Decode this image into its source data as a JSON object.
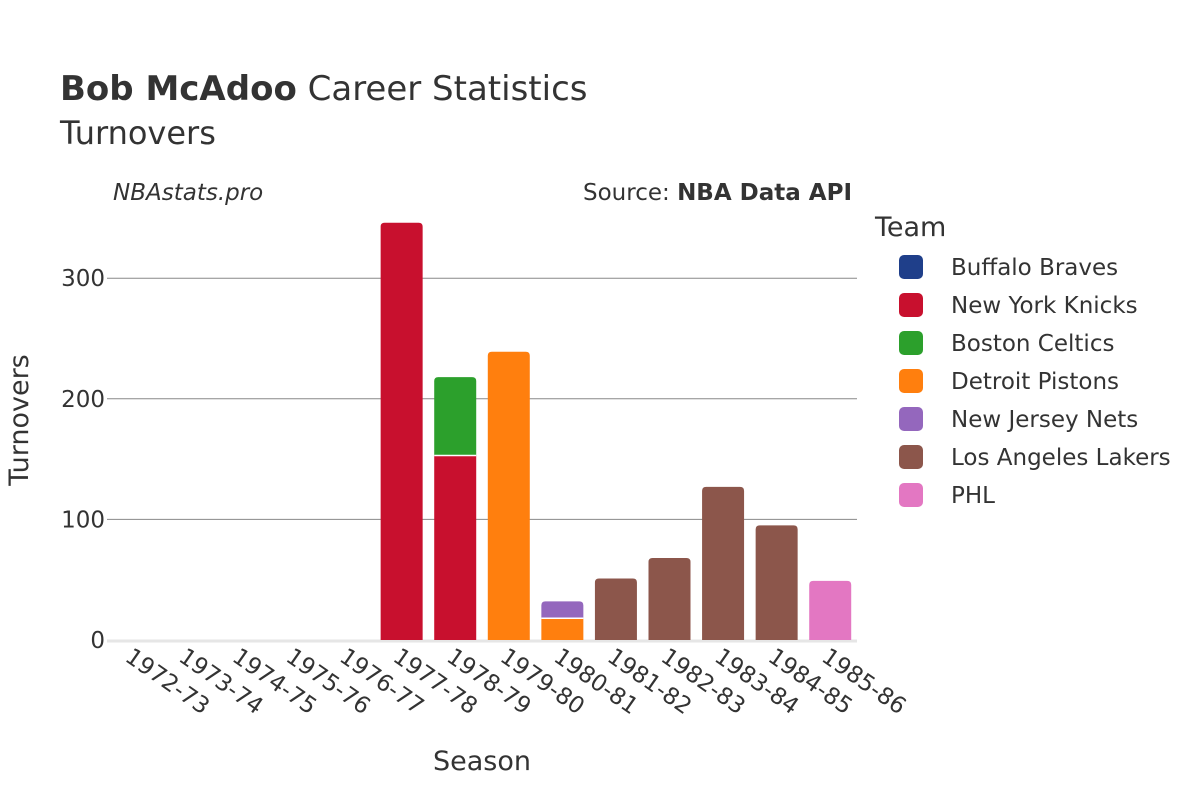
{
  "chart_data": {
    "type": "bar",
    "stacked": true,
    "title_bold": "Bob McAdoo",
    "title_rest": "Career Statistics",
    "subtitle": "Turnovers",
    "watermark": "NBAstats.pro",
    "source_prefix": "Source:",
    "source_name": "NBA Data API",
    "xlabel": "Season",
    "ylabel": "Turnovers",
    "ylim": [
      0,
      360
    ],
    "yticks": [
      0,
      100,
      200,
      300
    ],
    "categories": [
      "1972-73",
      "1973-74",
      "1974-75",
      "1975-76",
      "1976-77",
      "1977-78",
      "1978-79",
      "1979-80",
      "1980-81",
      "1981-82",
      "1982-83",
      "1983-84",
      "1984-85",
      "1985-86"
    ],
    "legend_title": "Team",
    "legend_position": "right",
    "series": [
      {
        "name": "Buffalo Braves",
        "color": "#1f3f8a",
        "values": [
          0,
          0,
          0,
          0,
          0,
          0,
          0,
          0,
          0,
          0,
          0,
          0,
          0,
          0
        ]
      },
      {
        "name": "New York Knicks",
        "color": "#c8102e",
        "values": [
          0,
          0,
          0,
          0,
          0,
          346,
          153,
          0,
          0,
          0,
          0,
          0,
          0,
          0
        ]
      },
      {
        "name": "Boston Celtics",
        "color": "#2ca02c",
        "values": [
          0,
          0,
          0,
          0,
          0,
          0,
          65,
          0,
          0,
          0,
          0,
          0,
          0,
          0
        ]
      },
      {
        "name": "Detroit Pistons",
        "color": "#ff7f0e",
        "values": [
          0,
          0,
          0,
          0,
          0,
          0,
          0,
          239,
          18,
          0,
          0,
          0,
          0,
          0
        ]
      },
      {
        "name": "New Jersey Nets",
        "color": "#9467bd",
        "values": [
          0,
          0,
          0,
          0,
          0,
          0,
          0,
          0,
          14,
          0,
          0,
          0,
          0,
          0
        ]
      },
      {
        "name": "Los Angeles Lakers",
        "color": "#8c564b",
        "values": [
          0,
          0,
          0,
          0,
          0,
          0,
          0,
          0,
          0,
          51,
          68,
          127,
          95,
          0
        ]
      },
      {
        "name": "PHL",
        "color": "#e377c2",
        "values": [
          0,
          0,
          0,
          0,
          0,
          0,
          0,
          0,
          0,
          0,
          0,
          0,
          0,
          49
        ]
      }
    ]
  }
}
